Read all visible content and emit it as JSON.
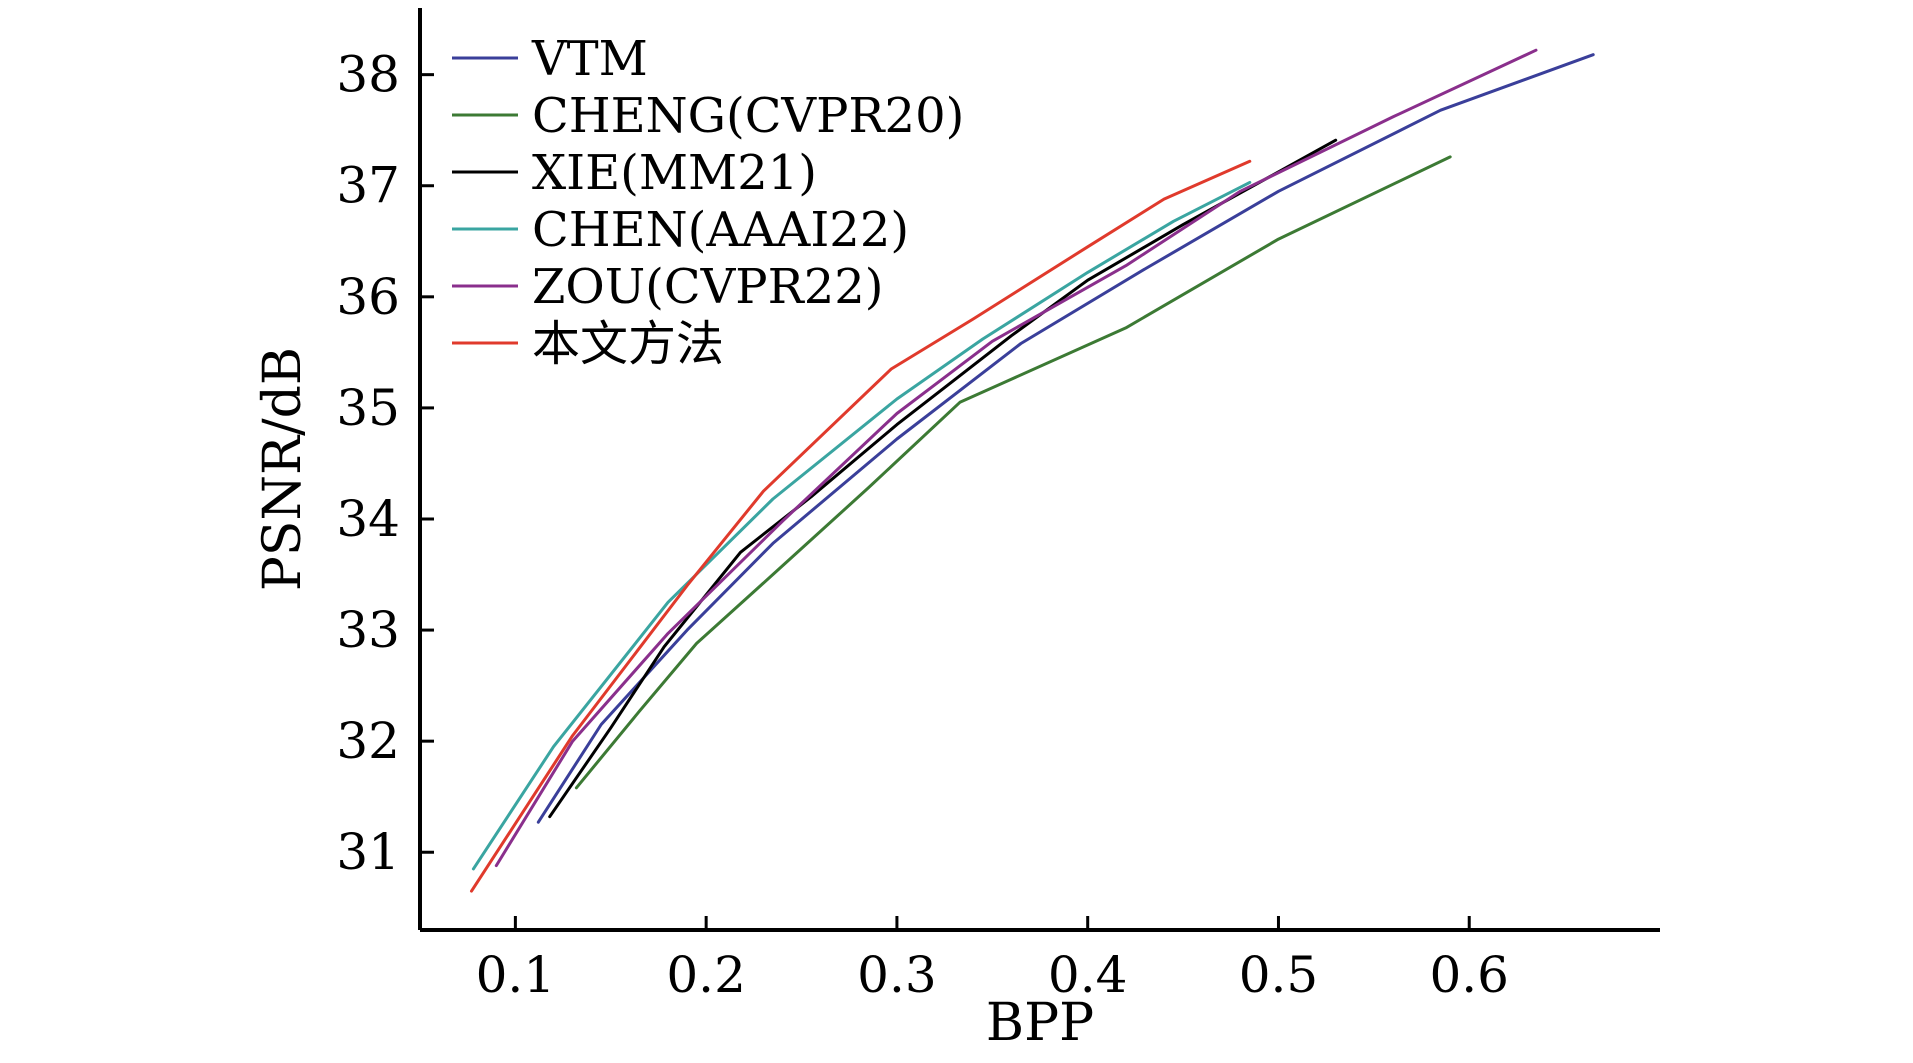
{
  "chart_data": {
    "type": "line",
    "xlabel": "BPP",
    "ylabel": "PSNR/dB",
    "xlim": [
      0.05,
      0.7
    ],
    "ylim": [
      30.3,
      38.6
    ],
    "xticks": [
      0.1,
      0.2,
      0.3,
      0.4,
      0.5,
      0.6
    ],
    "xtick_labels": [
      "0.1",
      "0.2",
      "0.3",
      "0.4",
      "0.5",
      "0.6"
    ],
    "yticks": [
      31,
      32,
      33,
      34,
      35,
      36,
      37,
      38
    ],
    "ytick_labels": [
      "31",
      "32",
      "33",
      "34",
      "35",
      "36",
      "37",
      "38"
    ],
    "grid": false,
    "legend_position": "top-left",
    "series": [
      {
        "name": "VTM",
        "color": "#3a3f9a",
        "x": [
          0.112,
          0.145,
          0.19,
          0.235,
          0.3,
          0.365,
          0.43,
          0.5,
          0.585,
          0.665
        ],
        "y": [
          31.27,
          32.15,
          33.0,
          33.78,
          34.72,
          35.58,
          36.25,
          36.95,
          37.68,
          38.18
        ]
      },
      {
        "name": "CHENG(CVPR20)",
        "color": "#3c7a34",
        "x": [
          0.132,
          0.165,
          0.195,
          0.235,
          0.285,
          0.333,
          0.42,
          0.5,
          0.59
        ],
        "y": [
          31.58,
          32.27,
          32.88,
          33.5,
          34.28,
          35.05,
          35.72,
          36.52,
          37.26
        ]
      },
      {
        "name": "XIE(MM21)",
        "color": "#000000",
        "x": [
          0.118,
          0.15,
          0.178,
          0.218,
          0.255,
          0.3,
          0.36,
          0.4,
          0.45,
          0.53
        ],
        "y": [
          31.32,
          32.12,
          32.85,
          33.7,
          34.2,
          34.85,
          35.65,
          36.15,
          36.65,
          37.41
        ]
      },
      {
        "name": "CHEN(AAAI22)",
        "color": "#3aa5a1",
        "x": [
          0.078,
          0.12,
          0.18,
          0.235,
          0.3,
          0.345,
          0.4,
          0.445,
          0.485
        ],
        "y": [
          30.85,
          31.95,
          33.25,
          34.18,
          35.08,
          35.62,
          36.22,
          36.68,
          37.03
        ]
      },
      {
        "name": "ZOU(CVPR22)",
        "color": "#8a2f8c",
        "x": [
          0.09,
          0.13,
          0.18,
          0.24,
          0.3,
          0.35,
          0.42,
          0.48,
          0.56,
          0.635
        ],
        "y": [
          30.88,
          32.0,
          32.97,
          33.98,
          34.95,
          35.6,
          36.28,
          36.95,
          37.62,
          38.22
        ]
      },
      {
        "name": "本文方法",
        "color": "#e03a2c",
        "x": [
          0.077,
          0.13,
          0.19,
          0.23,
          0.297,
          0.34,
          0.4,
          0.44,
          0.485
        ],
        "y": [
          30.65,
          32.05,
          33.4,
          34.25,
          35.35,
          35.8,
          36.45,
          36.88,
          37.22
        ]
      }
    ]
  }
}
